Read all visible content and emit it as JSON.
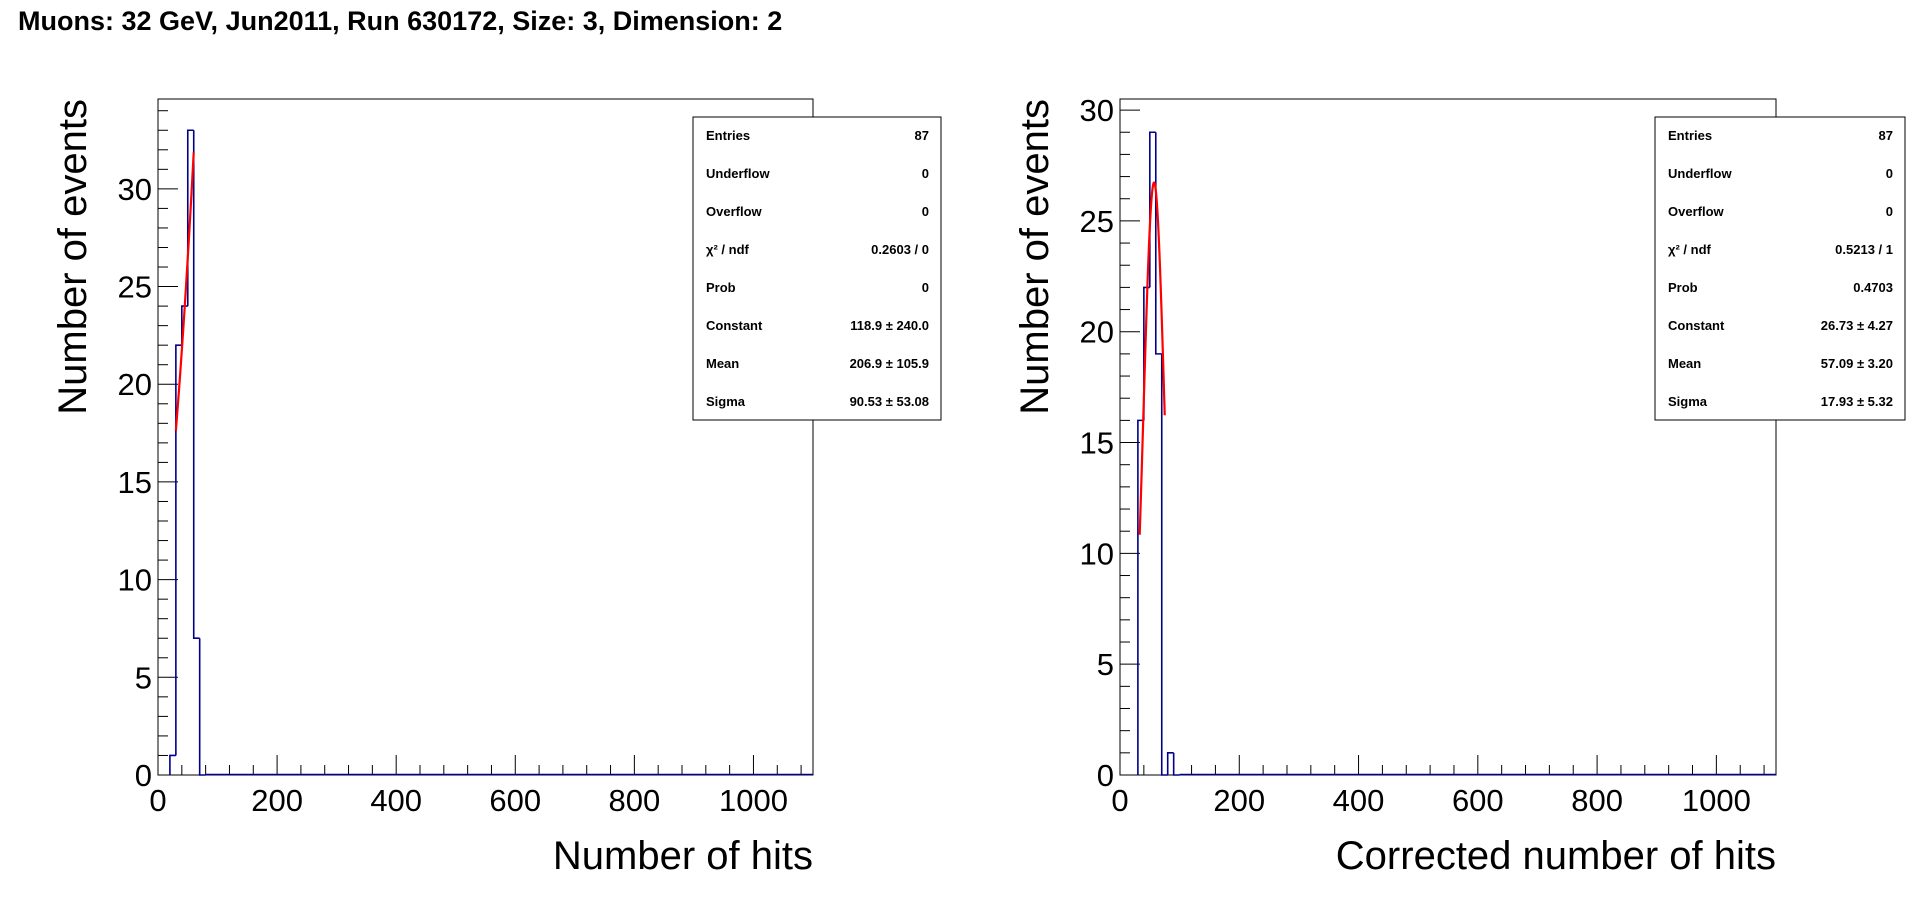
{
  "title": "Muons: 32 GeV, Jun2011, Run 630172, Size: 3, Dimension: 2",
  "chart_data": [
    {
      "type": "histogram",
      "xlabel": "Number of hits",
      "ylabel": "Number of events",
      "xlim": [
        0,
        1100
      ],
      "ylim": [
        0,
        34.6
      ],
      "x_ticks": [
        "0",
        "200",
        "400",
        "600",
        "800",
        "1000"
      ],
      "y_ticks": [
        "0",
        "5",
        "10",
        "15",
        "20",
        "25",
        "30"
      ],
      "bin_width": 10,
      "bins": [
        {
          "x0": 20,
          "x1": 30,
          "count": 1
        },
        {
          "x0": 30,
          "x1": 40,
          "count": 22
        },
        {
          "x0": 40,
          "x1": 50,
          "count": 24
        },
        {
          "x0": 50,
          "x1": 60,
          "count": 33
        },
        {
          "x0": 60,
          "x1": 70,
          "count": 7
        },
        {
          "x0": 70,
          "x1": 80,
          "count": 0
        }
      ],
      "histogram_color": "#00008b",
      "fit": {
        "function": "gaus",
        "constant": 118.9,
        "mean": 206.9,
        "sigma": 90.53,
        "range": [
          30,
          60
        ],
        "color": "#ff0000"
      },
      "stats": [
        {
          "label": "Entries",
          "value": "87"
        },
        {
          "label": "Underflow",
          "value": "0"
        },
        {
          "label": "Overflow",
          "value": "0"
        },
        {
          "label": "χ² / ndf",
          "value": "0.2603 / 0"
        },
        {
          "label": "Prob",
          "value": "0"
        },
        {
          "label": "Constant",
          "value": "118.9 ± 240.0"
        },
        {
          "label": "Mean",
          "value": "206.9 ± 105.9"
        },
        {
          "label": "Sigma",
          "value": "90.53 ± 53.08"
        }
      ]
    },
    {
      "type": "histogram",
      "xlabel": "Corrected number of hits",
      "ylabel": "Number of events",
      "xlim": [
        0,
        1100
      ],
      "ylim": [
        0,
        30.5
      ],
      "x_ticks": [
        "0",
        "200",
        "400",
        "600",
        "800",
        "1000"
      ],
      "y_ticks": [
        "0",
        "5",
        "10",
        "15",
        "20",
        "25",
        "30"
      ],
      "bin_width": 10,
      "bins": [
        {
          "x0": 30,
          "x1": 40,
          "count": 16
        },
        {
          "x0": 40,
          "x1": 50,
          "count": 22
        },
        {
          "x0": 50,
          "x1": 60,
          "count": 29
        },
        {
          "x0": 60,
          "x1": 70,
          "count": 19
        },
        {
          "x0": 70,
          "x1": 80,
          "count": 0
        },
        {
          "x0": 80,
          "x1": 90,
          "count": 1
        },
        {
          "x0": 90,
          "x1": 100,
          "count": 0
        }
      ],
      "histogram_color": "#00008b",
      "fit": {
        "function": "gaus",
        "constant": 26.73,
        "mean": 57.09,
        "sigma": 17.93,
        "range": [
          33,
          75
        ],
        "color": "#ff0000"
      },
      "stats": [
        {
          "label": "Entries",
          "value": "87"
        },
        {
          "label": "Underflow",
          "value": "0"
        },
        {
          "label": "Overflow",
          "value": "0"
        },
        {
          "label": "χ² / ndf",
          "value": "0.5213 / 1"
        },
        {
          "label": "Prob",
          "value": "0.4703"
        },
        {
          "label": "Constant",
          "value": "26.73 ± 4.27"
        },
        {
          "label": "Mean",
          "value": "57.09 ± 3.20"
        },
        {
          "label": "Sigma",
          "value": "17.93 ± 5.32"
        }
      ]
    }
  ]
}
